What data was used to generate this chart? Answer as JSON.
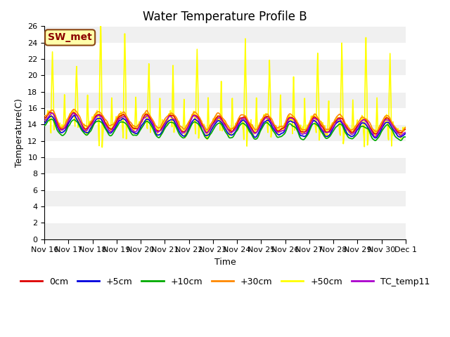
{
  "title": "Water Temperature Profile B",
  "xlabel": "Time",
  "ylabel": "Temperature(C)",
  "ylim": [
    0,
    26
  ],
  "yticks": [
    0,
    2,
    4,
    6,
    8,
    10,
    12,
    14,
    16,
    18,
    20,
    22,
    24,
    26
  ],
  "n_points": 720,
  "days": 15,
  "series_labels": [
    "0cm",
    "+5cm",
    "+10cm",
    "+30cm",
    "+50cm",
    "TC_temp11"
  ],
  "series_colors": [
    "#dd0000",
    "#0000dd",
    "#00aa00",
    "#ff8800",
    "#ffff00",
    "#aa00cc"
  ],
  "line_widths": [
    1.2,
    1.2,
    1.2,
    1.2,
    1.2,
    1.2
  ],
  "annotation_text": "SW_met",
  "bg_color": "#f0f0f0",
  "band_color1": "#f0f0f0",
  "band_color2": "#ffffff",
  "title_fontsize": 12,
  "axis_fontsize": 9,
  "tick_fontsize": 8,
  "legend_fontsize": 9,
  "x_tick_labels": [
    "Nov 16",
    "Nov 17",
    "Nov 18",
    "Nov 19",
    "Nov 20",
    "Nov 21",
    "Nov 22",
    "Nov 23",
    "Nov 24",
    "Nov 25",
    "Nov 26",
    "Nov 27",
    "Nov 28",
    "Nov 29",
    "Nov 30",
    "Dec 1"
  ],
  "x_tick_positions": [
    0,
    1,
    2,
    3,
    4,
    5,
    6,
    7,
    8,
    9,
    10,
    11,
    12,
    13,
    14,
    15
  ]
}
